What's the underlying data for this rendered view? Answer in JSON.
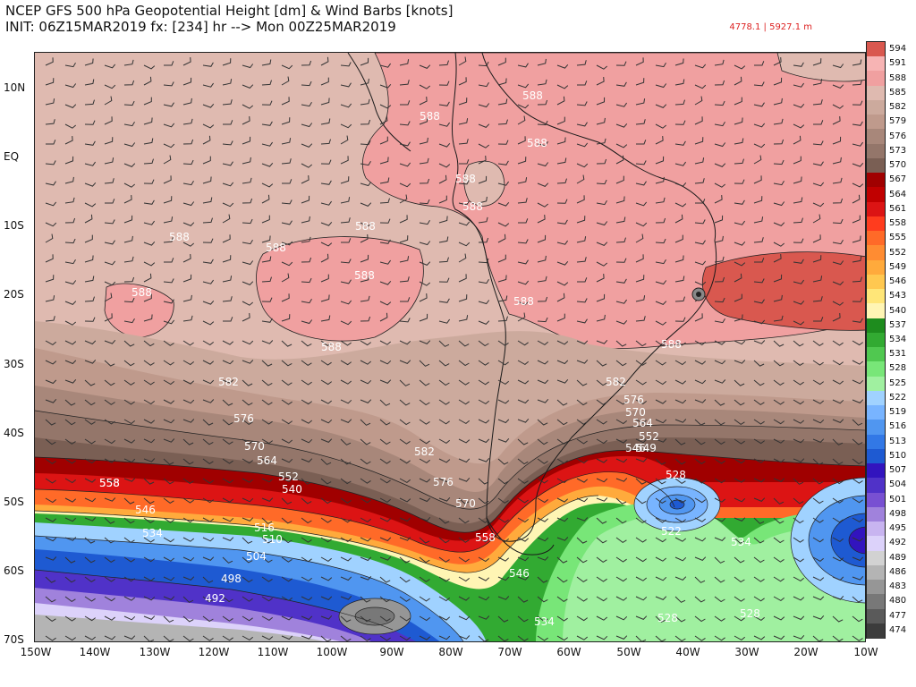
{
  "header": {
    "title": "NCEP GFS 500 hPa Geopotential Height [dm] & Wind Barbs [knots]",
    "subtitle": "INIT: 06Z15MAR2019 fx: [234] hr --> Mon 00Z25MAR2019",
    "minmax": "4778.1 | 5927.1 m"
  },
  "axes": {
    "lat_labels": [
      "10N",
      "EQ",
      "10S",
      "20S",
      "30S",
      "40S",
      "50S",
      "60S",
      "70S"
    ],
    "lon_labels": [
      "150W",
      "140W",
      "130W",
      "120W",
      "110W",
      "100W",
      "90W",
      "80W",
      "70W",
      "60W",
      "50W",
      "40W",
      "30W",
      "20W",
      "10W"
    ]
  },
  "colorbar": {
    "levels": [
      "594",
      "591",
      "588",
      "585",
      "582",
      "579",
      "576",
      "573",
      "570",
      "567",
      "564",
      "561",
      "558",
      "555",
      "552",
      "549",
      "546",
      "543",
      "540",
      "537",
      "534",
      "531",
      "528",
      "525",
      "522",
      "519",
      "516",
      "513",
      "510",
      "507",
      "504",
      "501",
      "498",
      "495",
      "492",
      "489",
      "486",
      "483",
      "480",
      "477",
      "474"
    ],
    "colors": [
      "#d9584f",
      "#f7b4b4",
      "#f0a0a0",
      "#dfbab0",
      "#ccaa9d",
      "#bf9a8c",
      "#a8877a",
      "#94766a",
      "#7a5f54",
      "#a00000",
      "#c00000",
      "#dc1414",
      "#ff3c1e",
      "#ff6a28",
      "#ff8c32",
      "#ffaa3c",
      "#ffc850",
      "#ffe678",
      "#fff5b4",
      "#1e8c1e",
      "#32aa32",
      "#50c850",
      "#78e678",
      "#a0f0a0",
      "#a0d2ff",
      "#78b4ff",
      "#5096f0",
      "#3278e6",
      "#1e5ad2",
      "#3214be",
      "#5032c8",
      "#7850d2",
      "#a082dc",
      "#c8b4f0",
      "#dcd2fa",
      "#d2d2d2",
      "#b4b4b4",
      "#969696",
      "#787878",
      "#5a5a5a",
      "#3c3c3c"
    ]
  },
  "contour_labels": [
    "588",
    "588",
    "588",
    "588",
    "588",
    "588",
    "588",
    "588",
    "588",
    "588",
    "588",
    "588",
    "582",
    "582",
    "582",
    "576",
    "576",
    "576",
    "570",
    "570",
    "570",
    "564",
    "564",
    "558",
    "558",
    "558",
    "552",
    "552",
    "546",
    "546",
    "546",
    "540",
    "534",
    "534",
    "534",
    "528",
    "528",
    "528",
    "522",
    "516",
    "510",
    "504",
    "498",
    "492",
    "588",
    "549"
  ],
  "map_colors": {
    "h588": "#f0a0a0",
    "h585": "#dfbab0",
    "h591": "#d9584f",
    "land_outline": "#1a1a1a"
  }
}
